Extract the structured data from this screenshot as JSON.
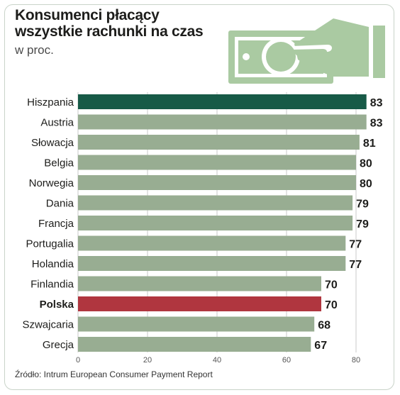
{
  "header": {
    "title_line1": "Konsumenci płacący",
    "title_line2": "wszystkie rachunki na czas",
    "subtitle": "w proc."
  },
  "footer": {
    "source": "Źródło: Intrum European Consumer Payment Report"
  },
  "illustration": {
    "icon": "hand-holding-banknote-icon",
    "color": "#aacaa2"
  },
  "colors": {
    "default_bar": "#98ad92",
    "highlight_top": "#175a47",
    "highlight_poland": "#b0363f",
    "grid": "#c9c9c9"
  },
  "chart_data": {
    "type": "bar",
    "orientation": "horizontal",
    "categories": [
      "Hiszpania",
      "Austria",
      "Słowacja",
      "Belgia",
      "Norwegia",
      "Dania",
      "Francja",
      "Portugalia",
      "Holandia",
      "Finlandia",
      "Polska",
      "Szwajcaria",
      "Grecja"
    ],
    "values": [
      83,
      83,
      81,
      80,
      80,
      79,
      79,
      77,
      77,
      70,
      70,
      68,
      67
    ],
    "highlight": {
      "Hiszpania": "#175a47",
      "Polska": "#b0363f"
    },
    "bold_categories": [
      "Polska"
    ],
    "x_ticks": [
      "0",
      "20",
      "40",
      "60",
      "80"
    ],
    "xlim": [
      0,
      83
    ],
    "grid": true
  }
}
